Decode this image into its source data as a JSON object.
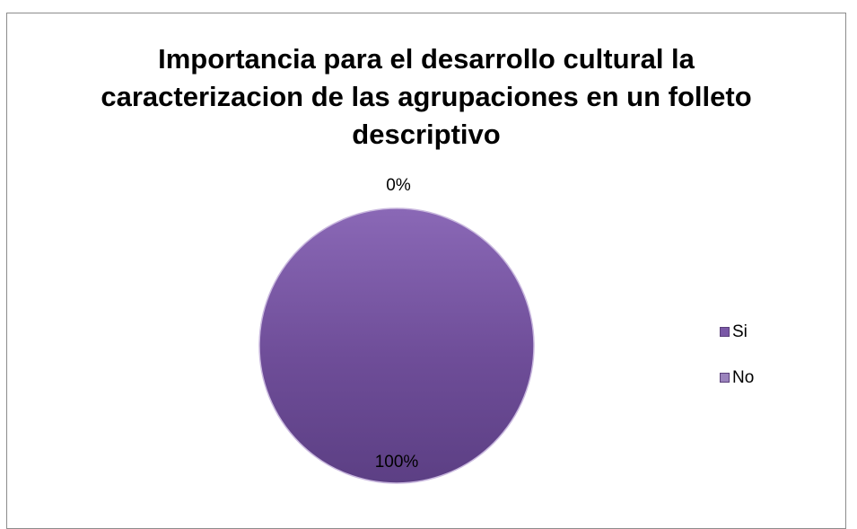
{
  "chart_data": {
    "type": "pie",
    "title_lines": [
      "Importancia para el desarrollo cultural la",
      "caracterizacion de las agrupaciones en un folleto",
      "descriptivo"
    ],
    "categories": [
      "Si",
      "No"
    ],
    "values": [
      100,
      0
    ],
    "data_labels": [
      "100%",
      "0%"
    ],
    "colors": [
      "#7a58a6",
      "#9b83bd"
    ],
    "legend_position": "right"
  }
}
